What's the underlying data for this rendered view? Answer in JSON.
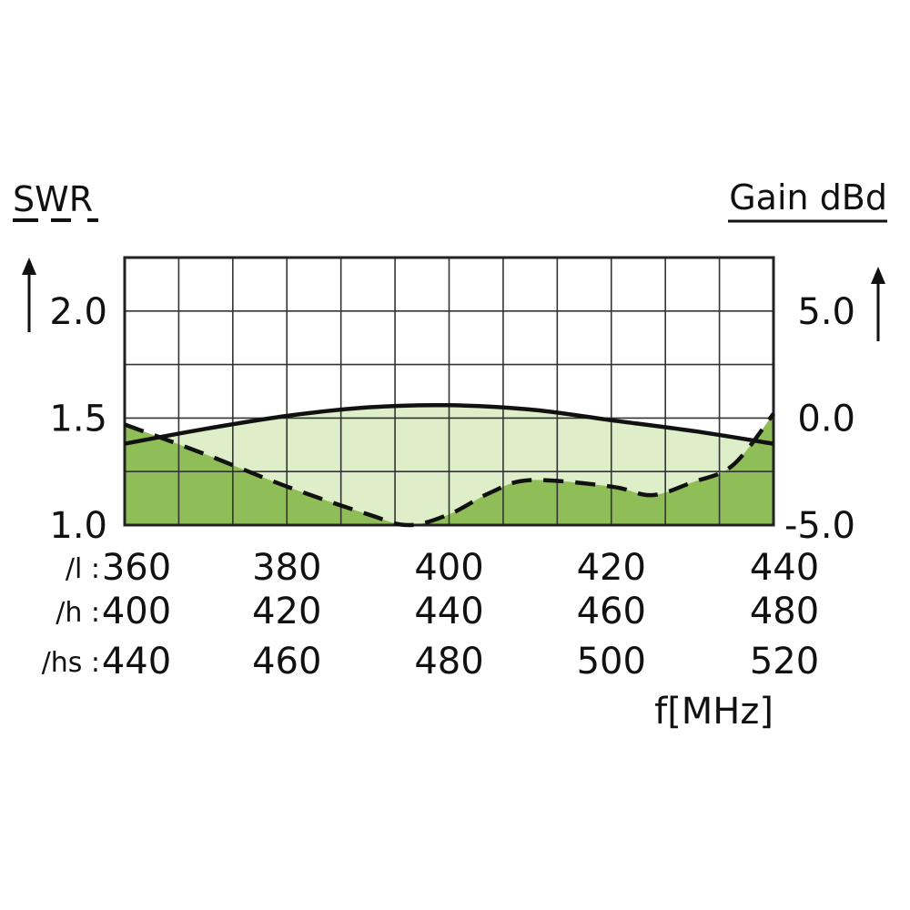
{
  "chart_data": {
    "type": "line",
    "left_axis": {
      "label": "SWR",
      "ticks": [
        "2.0",
        "1.5",
        "1.0"
      ],
      "range": [
        1.0,
        2.25
      ]
    },
    "right_axis": {
      "label": "Gain dBd",
      "ticks": [
        "5.0",
        "0.0",
        "-5.0"
      ],
      "range": [
        -5.0,
        7.5
      ]
    },
    "x_axis": {
      "unit_label": "f[MHz]",
      "range": [
        360,
        440
      ],
      "rows": [
        {
          "prefix": "/l :",
          "values": [
            "360",
            "380",
            "400",
            "420",
            "440"
          ]
        },
        {
          "prefix": "/h :",
          "values": [
            "400",
            "420",
            "440",
            "460",
            "480"
          ]
        },
        {
          "prefix": "/hs :",
          "values": [
            "440",
            "460",
            "480",
            "500",
            "520"
          ]
        }
      ]
    },
    "grid": true,
    "series": [
      {
        "style": "solid",
        "axis": "right",
        "x": [
          360,
          370,
          380,
          390,
          400,
          410,
          420,
          430,
          440
        ],
        "y": [
          -1.2,
          -0.5,
          0.1,
          0.5,
          0.6,
          0.4,
          -0.1,
          -0.6,
          -1.2
        ]
      },
      {
        "style": "dashed",
        "axis": "left",
        "x": [
          360,
          370,
          380,
          390,
          395,
          400,
          405,
          410,
          420,
          425,
          430,
          435,
          440
        ],
        "y": [
          1.47,
          1.33,
          1.18,
          1.05,
          1.0,
          1.05,
          1.15,
          1.21,
          1.18,
          1.14,
          1.2,
          1.28,
          1.52
        ]
      }
    ],
    "colors": {
      "upper_fill": "#ddeec9",
      "lower_fill": "#8fbd57",
      "grid": "#333333"
    }
  }
}
